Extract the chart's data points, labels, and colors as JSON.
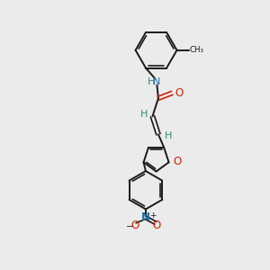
{
  "background_color": "#ebebeb",
  "bond_color": "#1a1a1a",
  "N_color": "#1a6fa8",
  "O_color": "#cc2200",
  "H_color": "#2d8a7a",
  "figsize": [
    3.0,
    3.0
  ],
  "dpi": 100,
  "xlim": [
    0,
    10
  ],
  "ylim": [
    0,
    10
  ]
}
